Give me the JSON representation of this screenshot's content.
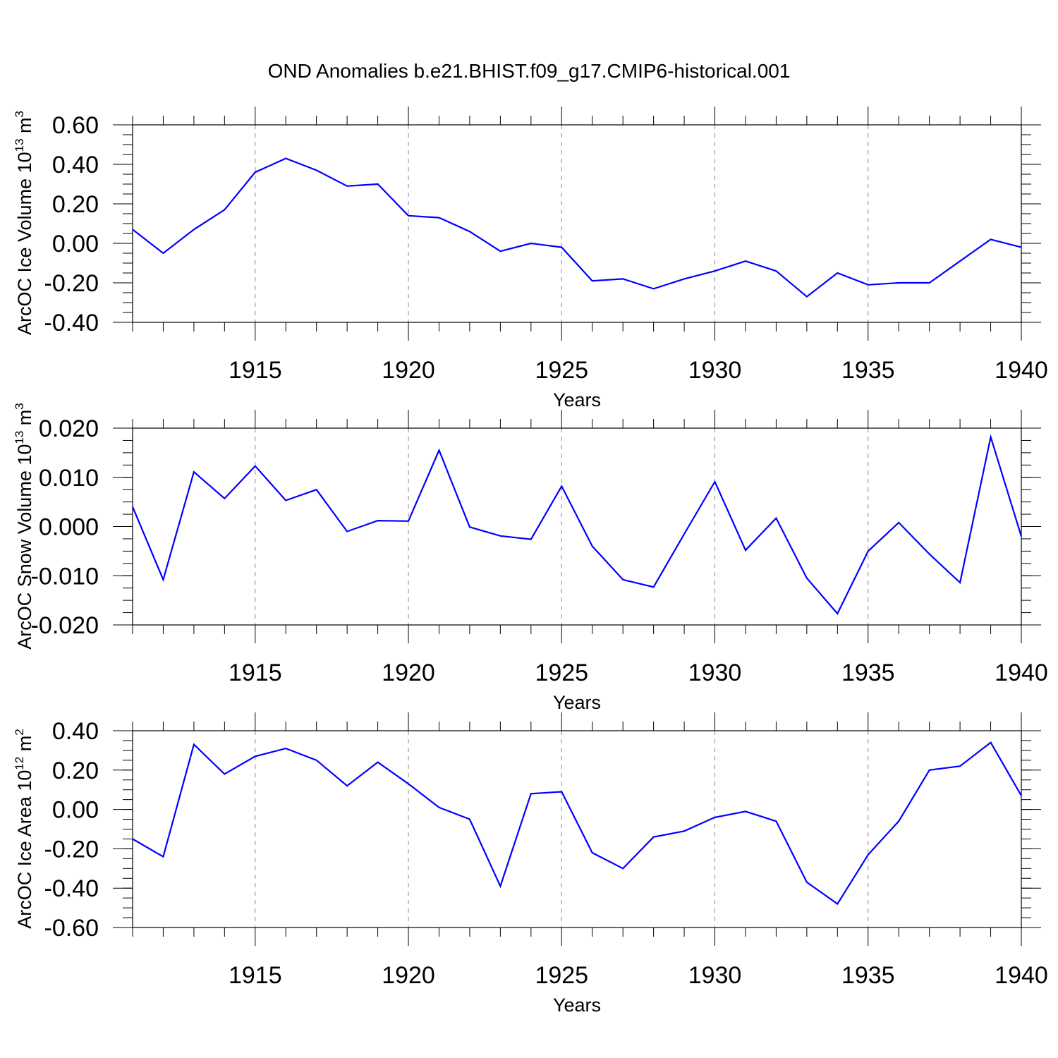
{
  "figure": {
    "title": "OND Anomalies b.e21.BHIST.f09_g17.CMIP6-historical.001",
    "line_color": "#0000ff",
    "grid_color": "#888888"
  },
  "chart_data": [
    {
      "type": "line",
      "title": "OND Anomalies b.e21.BHIST.f09_g17.CMIP6-historical.001",
      "xlabel": "Years",
      "ylabel_main": "ArcOC Ice Volume 10",
      "ylabel_exp": "13",
      "ylabel_unit": " m",
      "ylabel_unit_exp": "3",
      "xlim": [
        1911,
        1940
      ],
      "ylim": [
        -0.4,
        0.6
      ],
      "xticks": [
        1915,
        1920,
        1925,
        1930,
        1935,
        1940
      ],
      "xtick_labels": [
        "1915",
        "1920",
        "1925",
        "1930",
        "1935",
        "1940"
      ],
      "yticks": [
        -0.4,
        -0.2,
        0.0,
        0.2,
        0.4,
        0.6
      ],
      "ytick_labels": [
        "-0.40",
        "-0.20",
        "0.00",
        "0.20",
        "0.40",
        "0.60"
      ],
      "grid": "vertical dashed at major x ticks",
      "x": [
        1911,
        1912,
        1913,
        1914,
        1915,
        1916,
        1917,
        1918,
        1919,
        1920,
        1921,
        1922,
        1923,
        1924,
        1925,
        1926,
        1927,
        1928,
        1929,
        1930,
        1931,
        1932,
        1933,
        1934,
        1935,
        1936,
        1937,
        1938,
        1939,
        1940
      ],
      "series": [
        {
          "values": [
            0.07,
            -0.05,
            0.07,
            0.17,
            0.36,
            0.43,
            0.37,
            0.29,
            0.3,
            0.14,
            0.13,
            0.06,
            -0.04,
            0.0,
            -0.02,
            -0.19,
            -0.18,
            -0.23,
            -0.18,
            -0.14,
            -0.09,
            -0.14,
            -0.27,
            -0.15,
            -0.21,
            -0.2,
            -0.2,
            -0.09,
            0.02,
            -0.02
          ]
        }
      ]
    },
    {
      "type": "line",
      "xlabel": "Years",
      "ylabel_main": "ArcOC Snow Volume 10",
      "ylabel_exp": "13",
      "ylabel_unit": " m",
      "ylabel_unit_exp": "3",
      "xlim": [
        1911,
        1940
      ],
      "ylim": [
        -0.02,
        0.02
      ],
      "xticks": [
        1915,
        1920,
        1925,
        1930,
        1935,
        1940
      ],
      "xtick_labels": [
        "1915",
        "1920",
        "1925",
        "1930",
        "1935",
        "1940"
      ],
      "yticks": [
        -0.02,
        -0.01,
        0.0,
        0.01,
        0.02
      ],
      "ytick_labels": [
        "-0.020",
        "-0.010",
        "0.000",
        "0.010",
        "0.020"
      ],
      "grid": "vertical dashed at major x ticks",
      "x": [
        1911,
        1912,
        1913,
        1914,
        1915,
        1916,
        1917,
        1918,
        1919,
        1920,
        1921,
        1922,
        1923,
        1924,
        1925,
        1926,
        1927,
        1928,
        1929,
        1930,
        1931,
        1932,
        1933,
        1934,
        1935,
        1936,
        1937,
        1938,
        1939,
        1940
      ],
      "series": [
        {
          "values": [
            0.004,
            -0.0108,
            0.0111,
            0.0057,
            0.0123,
            0.0053,
            0.0075,
            -0.001,
            0.0012,
            0.0011,
            0.0155,
            -0.0001,
            -0.0019,
            -0.0026,
            0.0082,
            -0.004,
            -0.0108,
            -0.0123,
            -0.0015,
            0.0091,
            -0.0048,
            0.0017,
            -0.0105,
            -0.0177,
            -0.005,
            0.0008,
            -0.0056,
            -0.0114,
            0.0182,
            -0.002
          ]
        }
      ]
    },
    {
      "type": "line",
      "xlabel": "Years",
      "ylabel_main": "ArcOC Ice Area 10",
      "ylabel_exp": "12",
      "ylabel_unit": " m",
      "ylabel_unit_exp": "2",
      "xlim": [
        1911,
        1940
      ],
      "ylim": [
        -0.6,
        0.4
      ],
      "xticks": [
        1915,
        1920,
        1925,
        1930,
        1935,
        1940
      ],
      "xtick_labels": [
        "1915",
        "1920",
        "1925",
        "1930",
        "1935",
        "1940"
      ],
      "yticks": [
        -0.6,
        -0.4,
        -0.2,
        0.0,
        0.2,
        0.4
      ],
      "ytick_labels": [
        "-0.60",
        "-0.40",
        "-0.20",
        "0.00",
        "0.20",
        "0.40"
      ],
      "grid": "vertical dashed at major x ticks",
      "x": [
        1911,
        1912,
        1913,
        1914,
        1915,
        1916,
        1917,
        1918,
        1919,
        1920,
        1921,
        1922,
        1923,
        1924,
        1925,
        1926,
        1927,
        1928,
        1929,
        1930,
        1931,
        1932,
        1933,
        1934,
        1935,
        1936,
        1937,
        1938,
        1939,
        1940
      ],
      "series": [
        {
          "values": [
            -0.15,
            -0.24,
            0.33,
            0.18,
            0.27,
            0.31,
            0.25,
            0.12,
            0.24,
            0.13,
            0.01,
            -0.05,
            -0.39,
            0.08,
            0.09,
            -0.22,
            -0.3,
            -0.14,
            -0.11,
            -0.04,
            -0.01,
            -0.06,
            -0.37,
            -0.48,
            -0.23,
            -0.06,
            0.2,
            0.22,
            0.34,
            0.07
          ]
        }
      ]
    }
  ]
}
